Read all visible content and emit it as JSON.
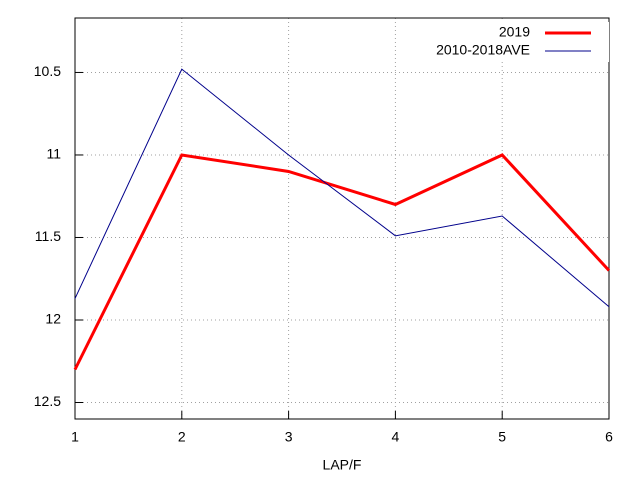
{
  "chart_data": {
    "type": "line",
    "x": [
      1,
      2,
      3,
      4,
      5,
      6
    ],
    "xlim": [
      1,
      6
    ],
    "xticks": [
      1,
      2,
      3,
      4,
      5,
      6
    ],
    "ylim": [
      12.6,
      10.17
    ],
    "yticks": [
      10.5,
      11,
      11.5,
      12,
      12.5
    ],
    "xlabel": "LAP/F",
    "grid": true,
    "legend": "top-right",
    "series": [
      {
        "name": "2019",
        "color": "#ff0000",
        "values": [
          12.3,
          11,
          11.1,
          11.3,
          11,
          11.7
        ]
      },
      {
        "name": "2010-2018AVE",
        "color": "#00008b",
        "values": [
          11.87,
          10.48,
          11.0,
          11.49,
          11.37,
          11.92
        ]
      }
    ]
  }
}
